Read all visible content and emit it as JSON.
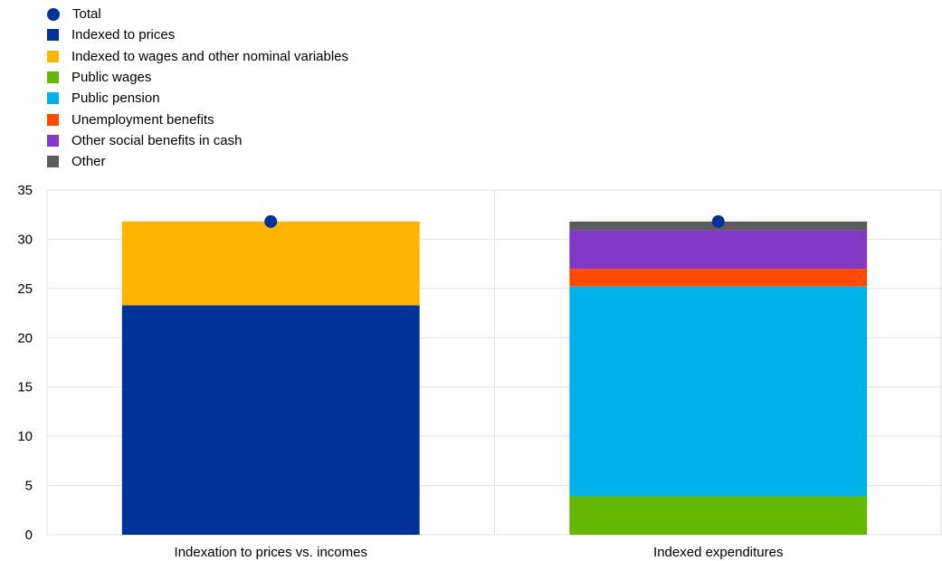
{
  "chart_data": {
    "type": "bar",
    "stacked": true,
    "categories": [
      "Indexation to prices vs. incomes",
      "Indexed expenditures"
    ],
    "ylim": [
      0,
      35
    ],
    "yticks": [
      0,
      5,
      10,
      15,
      20,
      25,
      30,
      35
    ],
    "grid": true,
    "legend_position": "top-left",
    "series": [
      {
        "name": "Indexed to prices",
        "color": "#003299",
        "values": [
          23.3,
          0
        ]
      },
      {
        "name": "Indexed to wages and other nominal variables",
        "color": "#FFB400",
        "values": [
          8.5,
          0
        ]
      },
      {
        "name": "Public wages",
        "color": "#65B800",
        "values": [
          0,
          3.9
        ]
      },
      {
        "name": "Public pension",
        "color": "#00B1EA",
        "values": [
          0,
          21.3
        ]
      },
      {
        "name": "Unemployment benefits",
        "color": "#FF4B00",
        "values": [
          0,
          1.8
        ]
      },
      {
        "name": "Other social benefits in cash",
        "color": "#8139C6",
        "values": [
          0,
          3.9
        ]
      },
      {
        "name": "Other",
        "color": "#5C5C5C",
        "values": [
          0,
          0.9
        ]
      }
    ],
    "total": {
      "name": "Total",
      "color": "#003299",
      "values": [
        31.8,
        31.8
      ]
    }
  }
}
